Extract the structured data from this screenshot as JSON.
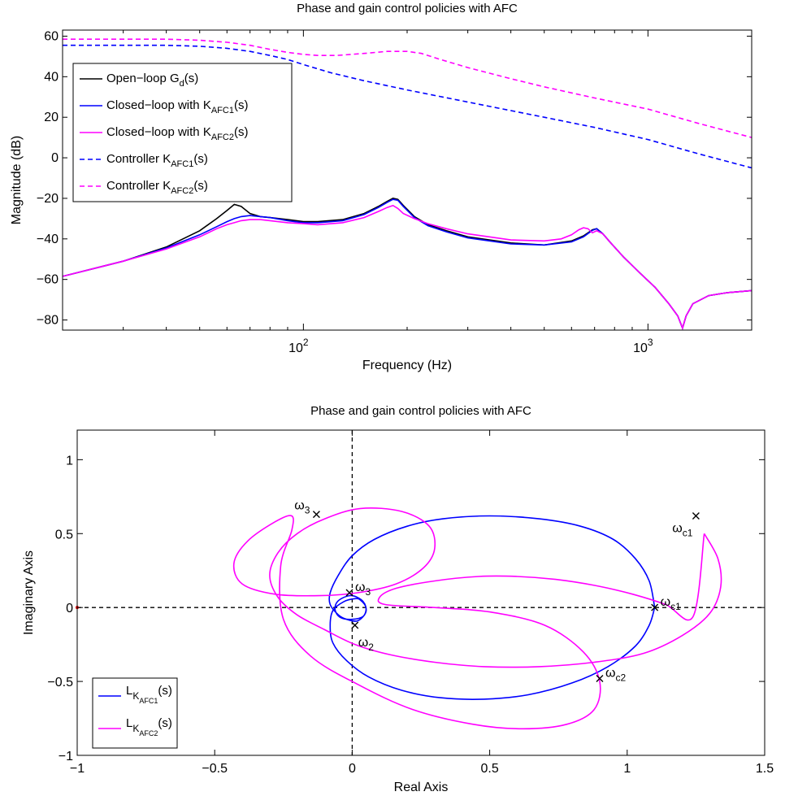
{
  "chart_data": [
    {
      "type": "line",
      "title": "Phase and gain control policies with AFC",
      "xlabel": "Frequency (Hz)",
      "ylabel": "Magnitude (dB)",
      "xscale": "log",
      "xlim": [
        20,
        2000
      ],
      "ylim": [
        -85,
        63
      ],
      "xticks": [
        {
          "value": 100,
          "base": "10",
          "exp": "2"
        },
        {
          "value": 1000,
          "base": "10",
          "exp": "3"
        }
      ],
      "yticks": [
        60,
        40,
        20,
        0,
        -20,
        -40,
        -60,
        -80
      ],
      "grid": false,
      "legend_position": "top-left",
      "series": [
        {
          "name": "Open−loop G_d(s)",
          "legend": {
            "main": "Open−loop G",
            "sub": "d",
            "tail": "(s)"
          },
          "color": "#000000",
          "dash": "solid",
          "x": [
            20,
            30,
            40,
            50,
            56,
            60,
            63,
            66,
            70,
            75,
            80,
            90,
            100,
            110,
            130,
            150,
            165,
            175,
            182,
            188,
            195,
            210,
            230,
            260,
            300,
            400,
            500,
            600,
            650,
            690,
            710,
            740,
            780,
            850,
            950,
            1050,
            1150,
            1220,
            1260,
            1290,
            1350,
            1500,
            1700,
            2000
          ],
          "y": [
            -58.5,
            -51,
            -44,
            -36,
            -30,
            -26,
            -23,
            -24,
            -27.5,
            -29,
            -29.5,
            -30.5,
            -31.5,
            -31.5,
            -30.5,
            -27.5,
            -24,
            -21.5,
            -20,
            -20.5,
            -23.5,
            -29,
            -33,
            -36,
            -39,
            -42,
            -43,
            -41,
            -38.5,
            -35.5,
            -35,
            -37.5,
            -42,
            -49,
            -57,
            -64,
            -72,
            -78,
            -84,
            -78,
            -72,
            -68,
            -66.5,
            -65.5
          ]
        },
        {
          "name": "Closed−loop with K_AFC1(s)",
          "legend": {
            "main": "Closed−loop with K",
            "sub": "AFC1",
            "tail": "(s)"
          },
          "color": "#0000ff",
          "dash": "solid",
          "x": [
            20,
            30,
            40,
            50,
            56,
            60,
            63,
            66,
            70,
            75,
            80,
            90,
            100,
            110,
            130,
            150,
            165,
            175,
            182,
            188,
            195,
            210,
            230,
            260,
            300,
            400,
            500,
            600,
            650,
            690,
            710,
            740,
            780,
            850,
            950,
            1050,
            1150,
            1220,
            1260,
            1290,
            1350,
            1500,
            1700,
            2000
          ],
          "y": [
            -58.5,
            -51,
            -44.5,
            -38,
            -34,
            -31.5,
            -30,
            -29,
            -28.5,
            -29,
            -29.5,
            -31,
            -32,
            -32,
            -31,
            -28,
            -24.5,
            -22,
            -20.5,
            -21,
            -24,
            -29.5,
            -33.5,
            -36.5,
            -39.5,
            -42.5,
            -43,
            -41.5,
            -39,
            -35.8,
            -35,
            -37.5,
            -42,
            -49,
            -57,
            -64,
            -72,
            -78,
            -84,
            -78,
            -72,
            -68,
            -66.5,
            -65.5
          ]
        },
        {
          "name": "Closed−loop with K_AFC2(s)",
          "legend": {
            "main": "Closed−loop with K",
            "sub": "AFC2",
            "tail": "(s)"
          },
          "color": "#ff00ff",
          "dash": "solid",
          "x": [
            20,
            30,
            40,
            50,
            56,
            60,
            63,
            66,
            70,
            75,
            80,
            90,
            100,
            110,
            130,
            150,
            165,
            175,
            182,
            188,
            195,
            210,
            230,
            260,
            300,
            400,
            500,
            560,
            600,
            630,
            650,
            670,
            690,
            710,
            740,
            780,
            850,
            950,
            1050,
            1150,
            1220,
            1260,
            1290,
            1350,
            1500,
            1700,
            2000
          ],
          "y": [
            -58.5,
            -51,
            -45,
            -39,
            -35,
            -33,
            -32,
            -31,
            -30.5,
            -30.5,
            -31,
            -32,
            -32.5,
            -33,
            -32,
            -29.5,
            -26.5,
            -24.5,
            -23.5,
            -25,
            -27.5,
            -30,
            -32.5,
            -35,
            -37.5,
            -40.5,
            -41,
            -40,
            -38,
            -35.5,
            -34.5,
            -35,
            -37,
            -36,
            -37.5,
            -42,
            -49,
            -57,
            -64,
            -72,
            -78,
            -84,
            -78,
            -72,
            -68,
            -66.5,
            -65.5
          ]
        },
        {
          "name": "Controller K_AFC1(s)",
          "legend": {
            "main": "Controller K",
            "sub": "AFC1",
            "tail": "(s)"
          },
          "color": "#0000ff",
          "dash": "dashed",
          "x": [
            20,
            30,
            40,
            50,
            60,
            70,
            80,
            90,
            100,
            120,
            150,
            200,
            300,
            500,
            700,
            1000,
            1400,
            2000
          ],
          "y": [
            55.5,
            55.5,
            55.5,
            55,
            54,
            52.5,
            50.5,
            48.5,
            46,
            42,
            38,
            33.5,
            27.5,
            20,
            15,
            9,
            2,
            -5
          ]
        },
        {
          "name": "Controller K_AFC2(s)",
          "legend": {
            "main": "Controller K",
            "sub": "AFC2",
            "tail": "(s)"
          },
          "color": "#ff00ff",
          "dash": "dashed",
          "x": [
            20,
            30,
            40,
            50,
            60,
            70,
            80,
            90,
            100,
            110,
            125,
            150,
            175,
            200,
            220,
            250,
            300,
            400,
            500,
            700,
            1000,
            1400,
            2000
          ],
          "y": [
            58.5,
            58.5,
            58.5,
            58,
            57,
            55.5,
            53.5,
            52,
            51,
            50.5,
            50.5,
            51.5,
            52.5,
            52.5,
            51.5,
            48.5,
            44.5,
            39,
            35,
            29.5,
            24,
            17,
            10
          ]
        }
      ]
    },
    {
      "type": "line",
      "title": "Phase and gain control policies with AFC",
      "xlabel": "Real Axis",
      "ylabel": "Imaginary Axis",
      "xlim": [
        -1,
        1.5
      ],
      "ylim": [
        -1,
        1.2
      ],
      "xticks": [
        "−1",
        "−0.5",
        "0",
        "0.5",
        "1",
        "1.5"
      ],
      "xtick_values": [
        -1,
        -0.5,
        0,
        0.5,
        1,
        1.5
      ],
      "yticks": [
        "1",
        "0.5",
        "0",
        "−0.5",
        "−1"
      ],
      "ytick_values": [
        1,
        0.5,
        0,
        -0.5,
        -1
      ],
      "grid": false,
      "legend_position": "bottom-left",
      "reference_lines": [
        {
          "axis": "x",
          "value": 0
        },
        {
          "axis": "y",
          "value": 0
        }
      ],
      "critical_point": {
        "x": -1,
        "y": 0,
        "color": "#ff0000"
      },
      "series": [
        {
          "name": "L_K_AFC1(s)",
          "legend": {
            "main": "L",
            "sub": "K",
            "subsub": "AFC1",
            "tail": "(s)"
          },
          "color": "#0000ff",
          "loops": [
            {
              "x": [
                1.1,
                1.08,
                1.03,
                0.95,
                0.83,
                0.68,
                0.5,
                0.33,
                0.2,
                0.08,
                0.0,
                -0.05,
                -0.08,
                -0.08,
                -0.05,
                -0.02,
                0.02,
                0.05,
                0.04,
                0.0,
                -0.04,
                -0.06,
                -0.06,
                -0.04,
                0.0,
                0.04,
                0.05,
                0.03,
                0.01,
                -0.03,
                -0.07,
                -0.08,
                -0.07,
                -0.02,
                0.06,
                0.18,
                0.32,
                0.48,
                0.64,
                0.8,
                0.93,
                1.03,
                1.08,
                1.1
              ],
              "y": [
                0.0,
                0.18,
                0.33,
                0.46,
                0.55,
                0.6,
                0.62,
                0.6,
                0.55,
                0.46,
                0.35,
                0.22,
                0.1,
                0.02,
                -0.05,
                -0.08,
                -0.09,
                -0.03,
                0.04,
                0.08,
                0.06,
                0.02,
                -0.03,
                -0.07,
                -0.08,
                -0.06,
                0.0,
                0.05,
                0.06,
                0.04,
                -0.02,
                -0.12,
                -0.24,
                -0.36,
                -0.47,
                -0.56,
                -0.61,
                -0.62,
                -0.59,
                -0.51,
                -0.4,
                -0.26,
                -0.12,
                0.0
              ]
            }
          ],
          "markers": [
            {
              "x": 1.1,
              "y": 0.0,
              "label": "ω",
              "sub": "c1",
              "label_pos": "right"
            },
            {
              "x": -0.01,
              "y": 0.1,
              "label": "ω",
              "sub": "3",
              "label_pos": "right"
            },
            {
              "x": 0.01,
              "y": -0.12,
              "label": "ω",
              "sub": "2",
              "label_pos": "below"
            }
          ]
        },
        {
          "name": "L_K_AFC2(s)",
          "legend": {
            "main": "L",
            "sub": "K",
            "subsub": "AFC2",
            "tail": "(s)"
          },
          "color": "#ff00ff",
          "loops": [
            {
              "x": [
                1.28,
                1.33,
                1.34,
                1.3,
                1.2,
                1.06,
                0.88,
                0.68,
                0.48,
                0.3,
                0.14,
                0.01,
                -0.1,
                -0.2,
                -0.27,
                -0.3,
                -0.27,
                -0.2,
                -0.1,
                0.03,
                0.18,
                0.28,
                0.3,
                0.26,
                0.16,
                0.02,
                -0.12,
                -0.28,
                -0.4,
                -0.43,
                -0.38,
                -0.28,
                -0.22,
                -0.22,
                -0.26,
                -0.25,
                -0.15,
                0.02,
                0.22,
                0.44,
                0.62,
                0.78,
                0.88,
                0.9,
                0.84,
                0.7,
                0.5,
                0.3,
                0.12,
                0.1,
                0.16,
                0.3,
                0.46,
                0.6,
                0.74,
                0.88,
                1.02,
                1.14,
                1.24,
                1.28
              ],
              "y": [
                0.5,
                0.33,
                0.14,
                -0.04,
                -0.19,
                -0.31,
                -0.37,
                -0.4,
                -0.4,
                -0.37,
                -0.32,
                -0.25,
                -0.15,
                -0.05,
                0.07,
                0.22,
                0.37,
                0.5,
                0.6,
                0.67,
                0.65,
                0.55,
                0.4,
                0.27,
                0.16,
                0.1,
                0.08,
                0.09,
                0.16,
                0.3,
                0.45,
                0.58,
                0.62,
                0.52,
                0.28,
                -0.08,
                -0.33,
                -0.52,
                -0.69,
                -0.79,
                -0.82,
                -0.79,
                -0.69,
                -0.5,
                -0.3,
                -0.12,
                -0.03,
                0.0,
                0.02,
                0.07,
                0.13,
                0.18,
                0.21,
                0.21,
                0.19,
                0.15,
                0.09,
                0.02,
                -0.06,
                0.5
              ]
            }
          ],
          "markers": [
            {
              "x": 1.25,
              "y": 0.62,
              "label": "ω",
              "sub": "c1",
              "label_pos": "below-left"
            },
            {
              "x": -0.13,
              "y": 0.63,
              "label": "ω",
              "sub": "3",
              "label_pos": "left"
            },
            {
              "x": 0.9,
              "y": -0.48,
              "label": "ω",
              "sub": "c2",
              "label_pos": "right"
            }
          ]
        }
      ]
    }
  ]
}
